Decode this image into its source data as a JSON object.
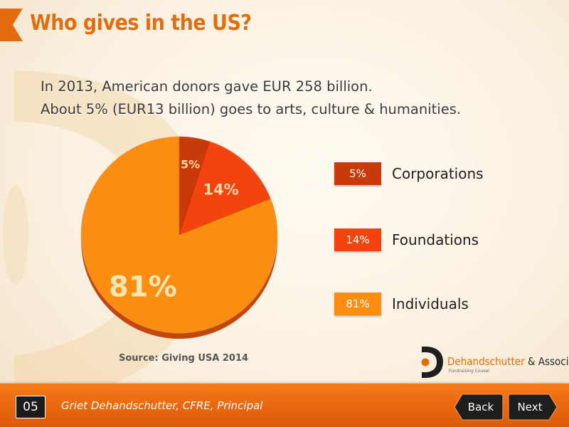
{
  "slide": {
    "title": "Who gives in the US?",
    "subtitle_lines": [
      "In 2013, American donors gave EUR 258 billion.",
      "About 5% (EUR13 billion) goes to arts, culture & humanities."
    ]
  },
  "chart_data": {
    "type": "pie",
    "categories": [
      "Corporations",
      "Foundations",
      "Individuals"
    ],
    "values": [
      5,
      14,
      81
    ],
    "labels": [
      "5%",
      "14%",
      "81%"
    ],
    "colors": [
      "#c93a0a",
      "#f5430f",
      "#fb8d10"
    ],
    "legend_placement": "right",
    "source": "Source: Giving USA 2014"
  },
  "logo": {
    "name": "Dehandschutter",
    "suffix": "& Associates",
    "tagline": "Fundraising Cousel"
  },
  "footer": {
    "page_number": "05",
    "presenter": "Griet Dehandschutter, CFRE, Principal",
    "back_label": "Back",
    "next_label": "Next"
  },
  "colors": {
    "accent": "#e36d0d",
    "footer": "#ec6c10",
    "button": "#1e1e1e"
  }
}
